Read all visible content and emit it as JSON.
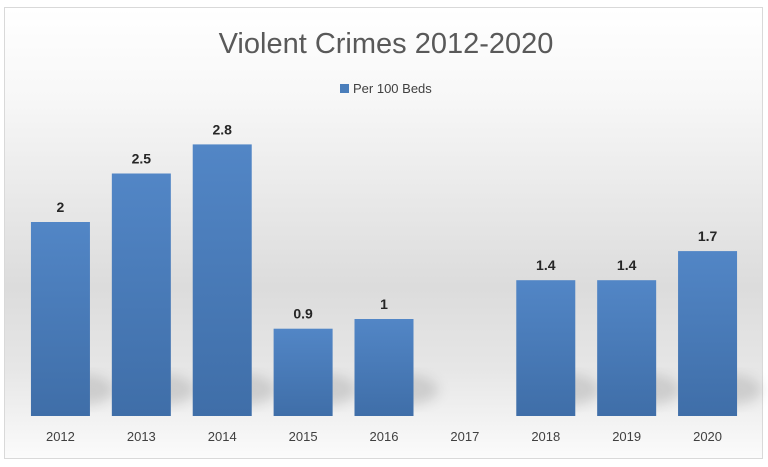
{
  "chart_data": {
    "type": "bar",
    "title": "Violent Crimes 2012-2020",
    "categories": [
      "2012",
      "2013",
      "2014",
      "2015",
      "2016",
      "2017",
      "2018",
      "2019",
      "2020"
    ],
    "series": [
      {
        "name": "Per 100 Beds",
        "values": [
          2,
          2.5,
          2.8,
          0.9,
          1,
          null,
          1.4,
          1.4,
          1.7
        ],
        "data_labels": [
          "2",
          "2.5",
          "2.8",
          "0.9",
          "1",
          "",
          "1.4",
          "1.4",
          "1.7"
        ],
        "color": "#4a7ebb"
      }
    ],
    "legend_position": "top",
    "grid": false,
    "xlabel": "",
    "ylabel": ""
  }
}
